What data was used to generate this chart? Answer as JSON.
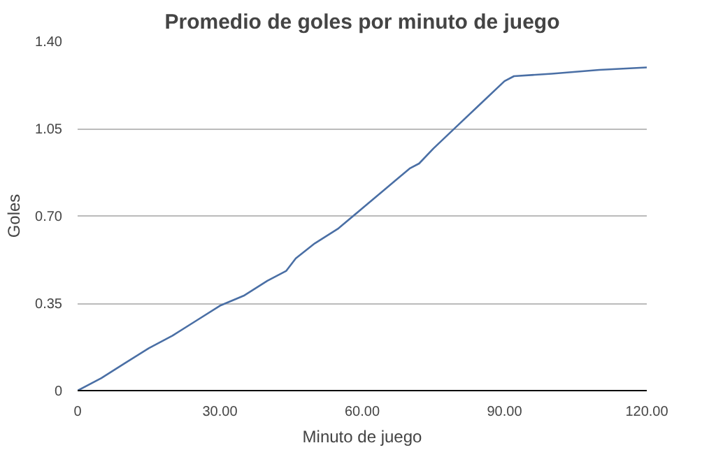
{
  "chart_data": {
    "type": "line",
    "title": "Promedio de goles por minuto de juego",
    "xlabel": "Minuto de juego",
    "ylabel": "Goles",
    "x": [
      0,
      5,
      10,
      15,
      20,
      25,
      30,
      35,
      40,
      44,
      46,
      50,
      55,
      60,
      65,
      70,
      72,
      75,
      80,
      85,
      90,
      92,
      100,
      110,
      120
    ],
    "series": [
      {
        "color": "#4a6fa5",
        "values": [
          0,
          0.05,
          0.11,
          0.17,
          0.22,
          0.28,
          0.34,
          0.38,
          0.44,
          0.48,
          0.53,
          0.59,
          0.65,
          0.73,
          0.81,
          0.89,
          0.91,
          0.97,
          1.06,
          1.15,
          1.24,
          1.26,
          1.27,
          1.285,
          1.295
        ]
      }
    ],
    "xlim": [
      0,
      120
    ],
    "ylim": [
      0,
      1.4
    ],
    "xticks": [
      {
        "value": 0,
        "label": "0"
      },
      {
        "value": 30,
        "label": "30.00"
      },
      {
        "value": 60,
        "label": "60.00"
      },
      {
        "value": 90,
        "label": "90.00"
      },
      {
        "value": 120,
        "label": "120.00"
      }
    ],
    "yticks": [
      {
        "value": 0,
        "label": "0"
      },
      {
        "value": 0.35,
        "label": "0.35"
      },
      {
        "value": 0.7,
        "label": "0.70"
      },
      {
        "value": 1.05,
        "label": "1.05"
      },
      {
        "value": 1.4,
        "label": "1.40"
      }
    ],
    "grid": "y"
  }
}
